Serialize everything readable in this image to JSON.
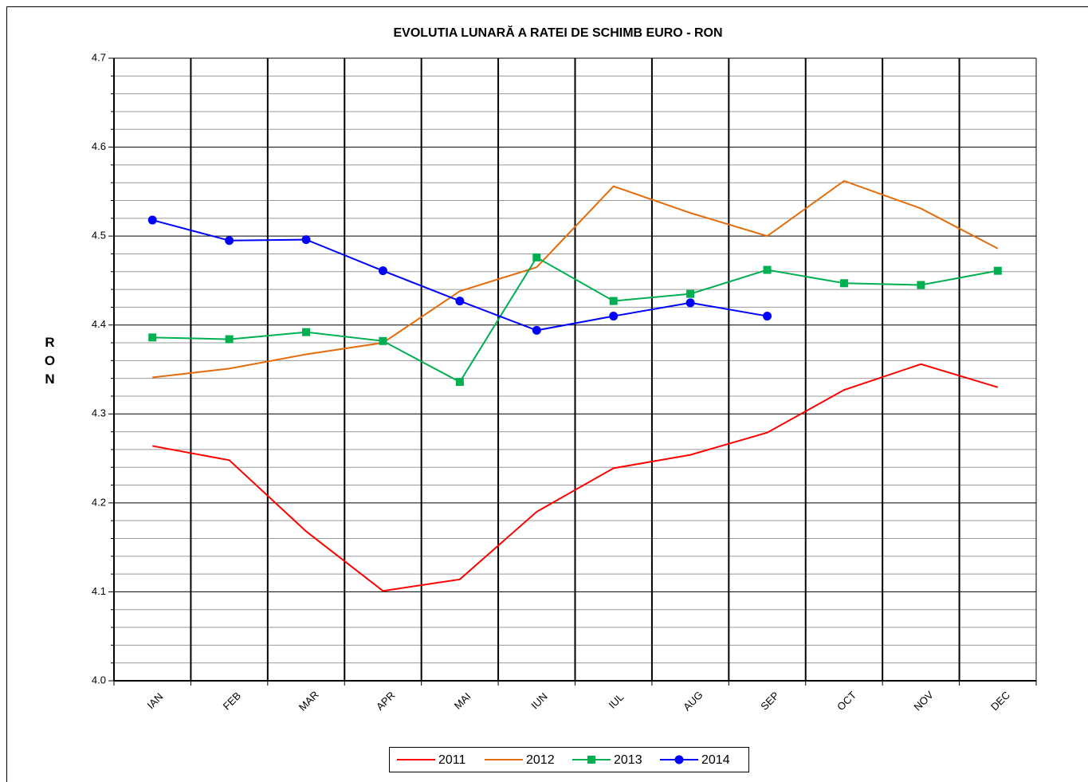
{
  "chart_data": {
    "type": "line",
    "title": "EVOLUTIA LUNARĂ A RATEI DE SCHIMB EURO - RON",
    "ylabel": "RON",
    "categories": [
      "IAN",
      "FEB",
      "MAR",
      "APR",
      "MAI",
      "IUN",
      "IUL",
      "AUG",
      "SEP",
      "OCT",
      "NOV",
      "DEC"
    ],
    "series": [
      {
        "name": "2011",
        "color": "#ff0000",
        "marker": "none",
        "values": [
          4.264,
          4.248,
          4.168,
          4.101,
          4.114,
          4.19,
          4.239,
          4.254,
          4.279,
          4.327,
          4.356,
          4.33
        ]
      },
      {
        "name": "2012",
        "color": "#e46c0a",
        "marker": "none",
        "values": [
          4.341,
          4.351,
          4.367,
          4.38,
          4.438,
          4.465,
          4.556,
          4.526,
          4.5,
          4.562,
          4.531,
          4.486
        ]
      },
      {
        "name": "2013",
        "color": "#00b050",
        "marker": "square",
        "values": [
          4.386,
          4.384,
          4.392,
          4.382,
          4.336,
          4.476,
          4.427,
          4.435,
          4.462,
          4.447,
          4.445,
          4.461
        ]
      },
      {
        "name": "2014",
        "color": "#0000ff",
        "marker": "circle",
        "values": [
          4.518,
          4.495,
          4.496,
          4.461,
          4.427,
          4.394,
          4.41,
          4.425,
          4.41,
          null,
          null,
          null
        ]
      }
    ],
    "ylim": [
      4.0,
      4.7
    ],
    "yticks": [
      {
        "value": 4.0,
        "label": "4.0"
      },
      4.1,
      4.2,
      4.3,
      4.4,
      4.5,
      4.6,
      4.7
    ],
    "grid": true,
    "minor_grid": true,
    "legend": "bottom"
  }
}
